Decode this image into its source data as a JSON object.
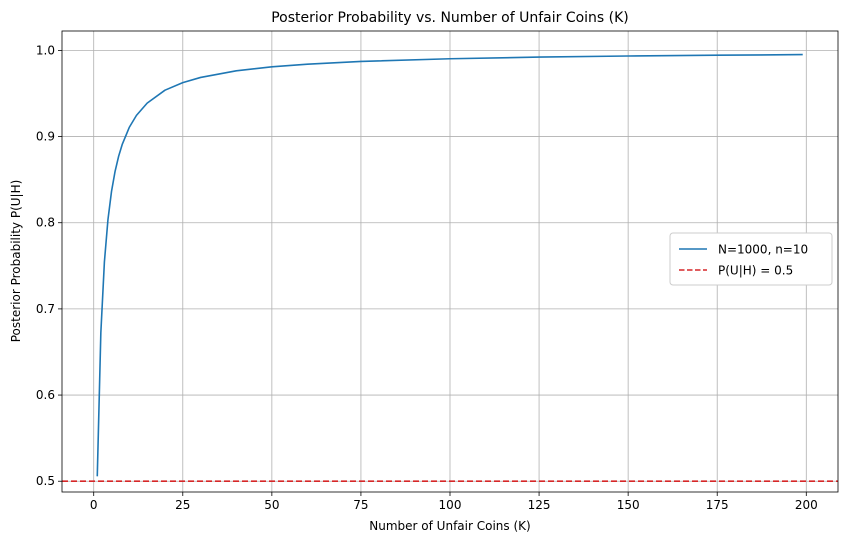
{
  "chart_data": {
    "type": "line",
    "title": "Posterior Probability vs. Number of Unfair Coins (K)",
    "xlabel": "Number of Unfair Coins (K)",
    "ylabel": "Posterior Probability P(U|H)",
    "xlim": [
      -8.9,
      208.9
    ],
    "ylim": [
      0.4875,
      1.0225
    ],
    "xticks": [
      0,
      25,
      50,
      75,
      100,
      125,
      150,
      175,
      200
    ],
    "yticks": [
      0.5,
      0.6,
      0.7,
      0.8,
      0.9,
      1.0
    ],
    "grid": true,
    "legend_placement": "center-right",
    "series": [
      {
        "name": "N=1000, n=10",
        "color": "#1f77b4",
        "style": "solid",
        "x": [
          1,
          2,
          3,
          4,
          5,
          6,
          7,
          8,
          10,
          12,
          15,
          20,
          25,
          30,
          40,
          50,
          60,
          75,
          100,
          125,
          150,
          175,
          199
        ],
        "y": [
          0.5057,
          0.6723,
          0.7545,
          0.8037,
          0.8364,
          0.8597,
          0.8772,
          0.8908,
          0.9108,
          0.9246,
          0.9388,
          0.9538,
          0.9626,
          0.9686,
          0.9763,
          0.9809,
          0.984,
          0.9872,
          0.9903,
          0.9922,
          0.9935,
          0.9944,
          0.9951
        ]
      },
      {
        "name": "P(U|H) = 0.5",
        "color": "#d62728",
        "style": "dashed",
        "hline": 0.5
      }
    ]
  }
}
